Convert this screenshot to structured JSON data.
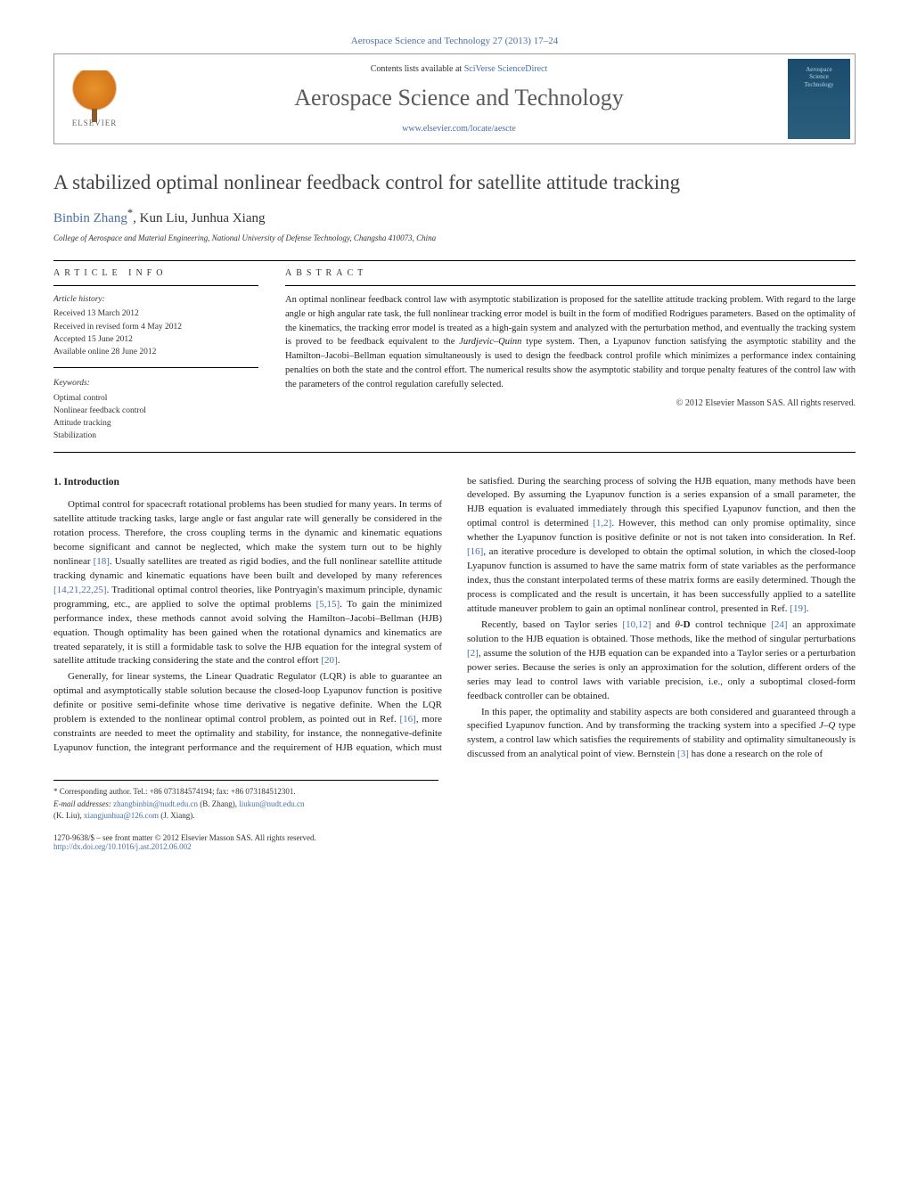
{
  "journal_ref": "Aerospace Science and Technology 27 (2013) 17–24",
  "header": {
    "elsevier": "ELSEVIER",
    "contents_prefix": "Contents lists available at ",
    "contents_link": "SciVerse ScienceDirect",
    "journal_name": "Aerospace Science and Technology",
    "journal_url": "www.elsevier.com/locate/aescte",
    "cover_line1": "Aerospace",
    "cover_line2": "Science",
    "cover_line3": "Technology"
  },
  "title": "A stabilized optimal nonlinear feedback control for satellite attitude tracking",
  "authors_html": "Binbin Zhang",
  "author_sup": "*",
  "authors_rest": ", Kun Liu, Junhua Xiang",
  "affiliation": "College of Aerospace and Material Engineering, National University of Defense Technology, Changsha 410073, China",
  "info_label": "ARTICLE INFO",
  "abstract_label": "ABSTRACT",
  "history_head": "Article history:",
  "history": {
    "received": "Received 13 March 2012",
    "revised": "Received in revised form 4 May 2012",
    "accepted": "Accepted 15 June 2012",
    "online": "Available online 28 June 2012"
  },
  "keywords_head": "Keywords:",
  "keywords": [
    "Optimal control",
    "Nonlinear feedback control",
    "Attitude tracking",
    "Stabilization"
  ],
  "abstract": "An optimal nonlinear feedback control law with asymptotic stabilization is proposed for the satellite attitude tracking problem. With regard to the large angle or high angular rate task, the full nonlinear tracking error model is built in the form of modified Rodrigues parameters. Based on the optimality of the kinematics, the tracking error model is treated as a high-gain system and analyzed with the perturbation method, and eventually the tracking system is proved to be feedback equivalent to the Jurdjevic–Quinn type system. Then, a Lyapunov function satisfying the asymptotic stability and the Hamilton–Jacobi–Bellman equation simultaneously is used to design the feedback control profile which minimizes a performance index containing penalties on both the state and the control effort. The numerical results show the asymptotic stability and torque penalty features of the control law with the parameters of the control regulation carefully selected.",
  "copyright": "© 2012 Elsevier Masson SAS. All rights reserved.",
  "intro_heading": "1. Introduction",
  "para1": "Optimal control for spacecraft rotational problems has been studied for many years. In terms of satellite attitude tracking tasks, large angle or fast angular rate will generally be considered in the rotation process. Therefore, the cross coupling terms in the dynamic and kinematic equations become significant and cannot be neglected, which make the system turn out to be highly nonlinear [18]. Usually satellites are treated as rigid bodies, and the full nonlinear satellite attitude tracking dynamic and kinematic equations have been built and developed by many references [14,21,22,25]. Traditional optimal control theories, like Pontryagin's maximum principle, dynamic programming, etc., are applied to solve the optimal problems [5,15]. To gain the minimized performance index, these methods cannot avoid solving the Hamilton–Jacobi–Bellman (HJB) equation. Though optimality has been gained when the rotational dynamics and kinematics are treated separately, it is still a formidable task to solve the HJB equation for the integral system of satellite attitude tracking considering the state and the control effort [20].",
  "para2": "Generally, for linear systems, the Linear Quadratic Regulator (LQR) is able to guarantee an optimal and asymptotically stable solution because the closed-loop Lyapunov function is positive definite or positive semi-definite whose time derivative is negative definite. When the LQR problem is extended to the nonlinear optimal control problem, as pointed out in Ref. [16], more constraints are needed to meet the optimality and stability, for instance, the nonnegative-definite Lyapunov function, the integrant performance and the requirement of HJB equation, which must be satisfied. During the searching process of solving the HJB equation, many methods have been developed. By assuming the Lyapunov function is a series expansion of a small parameter, the HJB equation is evaluated immediately through this specified Lyapunov function, and then the optimal control is determined [1,2]. However, this method can only promise optimality, since whether the Lyapunov function is positive definite or not is not taken into consideration. In Ref. [16], an iterative procedure is developed to obtain the optimal solution, in which the closed-loop Lyapunov function is assumed to have the same matrix form of state variables as the performance index, thus the constant interpolated terms of these matrix forms are easily determined. Though the process is complicated and the result is uncertain, it has been successfully applied to a satellite attitude maneuver problem to gain an optimal nonlinear control, presented in Ref. [19].",
  "para3": "Recently, based on Taylor series [10,12] and θ-D control technique [24] an approximate solution to the HJB equation is obtained. Those methods, like the method of singular perturbations [2], assume the solution of the HJB equation can be expanded into a Taylor series or a perturbation power series. Because the series is only an approximation for the solution, different orders of the series may lead to control laws with variable precision, i.e., only a suboptimal closed-form feedback controller can be obtained.",
  "para4": "In this paper, the optimality and stability aspects are both considered and guaranteed through a specified Lyapunov function. And by transforming the tracking system into a specified J–Q type system, a control law which satisfies the requirements of stability and optimality simultaneously is discussed from an analytical point of view. Bernstein [3] has done a research on the role of",
  "footer": {
    "corr": "Corresponding author. Tel.: +86 073184574194; fax: +86 073184512301.",
    "email_label": "E-mail addresses:",
    "email1": "zhangbinbin@nudt.edu.cn",
    "email1_name": "(B. Zhang),",
    "email2": "liukun@nudt.edu.cn",
    "email2_name": "(K. Liu),",
    "email3": "xiangjunhua@126.com",
    "email3_name": "(J. Xiang)."
  },
  "doi": {
    "issn": "1270-9638/$ – see front matter © 2012 Elsevier Masson SAS. All rights reserved.",
    "link": "http://dx.doi.org/10.1016/j.ast.2012.06.002"
  },
  "colors": {
    "link": "#4a6fa5",
    "text": "#222222",
    "heading": "#444444"
  }
}
